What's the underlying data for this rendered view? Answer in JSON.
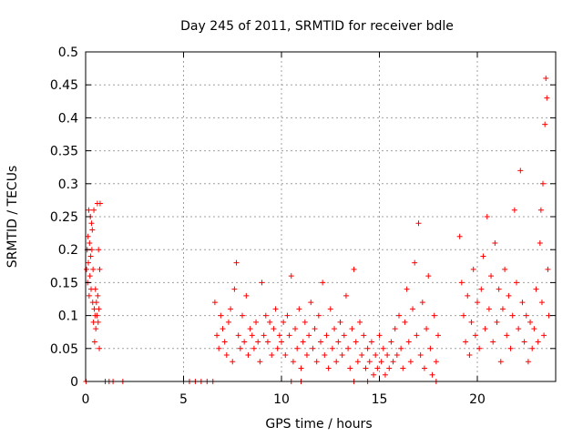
{
  "chart_data": {
    "type": "scatter",
    "title": "Day 245 of 2011, SRMTID for receiver bdle",
    "xlabel": "GPS time / hours",
    "ylabel": "SRMTID / TECUs",
    "xlim": [
      0,
      24
    ],
    "ylim": [
      0,
      0.5
    ],
    "grid": true,
    "marker": "+",
    "series_color": "#ff0000",
    "x_ticks": [
      {
        "value": 0,
        "label": "0"
      },
      {
        "value": 5,
        "label": "5"
      },
      {
        "value": 10,
        "label": "10"
      },
      {
        "value": 15,
        "label": "15"
      },
      {
        "value": 20,
        "label": "20"
      }
    ],
    "y_ticks": [
      {
        "value": 0,
        "label": "0"
      },
      {
        "value": 0.05,
        "label": "0.05"
      },
      {
        "value": 0.1,
        "label": "0.1"
      },
      {
        "value": 0.15,
        "label": "0.15"
      },
      {
        "value": 0.2,
        "label": "0.2"
      },
      {
        "value": 0.25,
        "label": "0.25"
      },
      {
        "value": 0.3,
        "label": "0.3"
      },
      {
        "value": 0.35,
        "label": "0.35"
      },
      {
        "value": 0.4,
        "label": "0.4"
      },
      {
        "value": 0.45,
        "label": "0.45"
      },
      {
        "value": 0.5,
        "label": "0.5"
      }
    ],
    "points": [
      [
        0.02,
        0.0
      ],
      [
        0.05,
        0.17
      ],
      [
        0.08,
        0.2
      ],
      [
        0.1,
        0.15
      ],
      [
        0.12,
        0.22
      ],
      [
        0.14,
        0.18
      ],
      [
        0.16,
        0.26
      ],
      [
        0.18,
        0.13
      ],
      [
        0.2,
        0.21
      ],
      [
        0.22,
        0.16
      ],
      [
        0.24,
        0.25
      ],
      [
        0.26,
        0.19
      ],
      [
        0.28,
        0.14
      ],
      [
        0.3,
        0.24
      ],
      [
        0.32,
        0.2
      ],
      [
        0.34,
        0.23
      ],
      [
        0.36,
        0.12
      ],
      [
        0.38,
        0.17
      ],
      [
        0.4,
        0.09
      ],
      [
        0.42,
        0.26
      ],
      [
        0.44,
        0.11
      ],
      [
        0.46,
        0.06
      ],
      [
        0.48,
        0.1
      ],
      [
        0.5,
        0.14
      ],
      [
        0.52,
        0.08
      ],
      [
        0.55,
        0.12
      ],
      [
        0.58,
        0.1
      ],
      [
        0.6,
        0.27
      ],
      [
        0.62,
        0.13
      ],
      [
        0.64,
        0.09
      ],
      [
        0.66,
        0.2
      ],
      [
        0.68,
        0.11
      ],
      [
        0.7,
        0.05
      ],
      [
        0.72,
        0.17
      ],
      [
        0.74,
        0.27
      ],
      [
        1.0,
        0.0
      ],
      [
        1.2,
        0.0
      ],
      [
        1.4,
        0.0
      ],
      [
        1.9,
        0.0
      ],
      [
        5.0,
        0.0
      ],
      [
        5.3,
        0.0
      ],
      [
        5.6,
        0.0
      ],
      [
        5.9,
        0.0
      ],
      [
        6.2,
        0.0
      ],
      [
        6.5,
        0.0
      ],
      [
        6.6,
        0.12
      ],
      [
        6.7,
        0.07
      ],
      [
        6.8,
        0.05
      ],
      [
        6.9,
        0.1
      ],
      [
        7.0,
        0.08
      ],
      [
        7.1,
        0.06
      ],
      [
        7.2,
        0.04
      ],
      [
        7.3,
        0.09
      ],
      [
        7.4,
        0.11
      ],
      [
        7.5,
        0.03
      ],
      [
        7.6,
        0.14
      ],
      [
        7.7,
        0.18
      ],
      [
        7.8,
        0.07
      ],
      [
        7.9,
        0.05
      ],
      [
        8.0,
        0.1
      ],
      [
        8.1,
        0.06
      ],
      [
        8.2,
        0.13
      ],
      [
        8.3,
        0.04
      ],
      [
        8.4,
        0.08
      ],
      [
        8.5,
        0.07
      ],
      [
        8.6,
        0.05
      ],
      [
        8.7,
        0.09
      ],
      [
        8.8,
        0.06
      ],
      [
        8.9,
        0.03
      ],
      [
        9.0,
        0.15
      ],
      [
        9.1,
        0.07
      ],
      [
        9.2,
        0.1
      ],
      [
        9.3,
        0.06
      ],
      [
        9.4,
        0.09
      ],
      [
        9.5,
        0.04
      ],
      [
        9.6,
        0.08
      ],
      [
        9.7,
        0.11
      ],
      [
        9.8,
        0.05
      ],
      [
        9.9,
        0.07
      ],
      [
        10.0,
        0.06
      ],
      [
        10.1,
        0.09
      ],
      [
        10.2,
        0.04
      ],
      [
        10.3,
        0.1
      ],
      [
        10.4,
        0.07
      ],
      [
        10.5,
        0.16
      ],
      [
        10.6,
        0.03
      ],
      [
        10.7,
        0.08
      ],
      [
        10.8,
        0.05
      ],
      [
        10.9,
        0.11
      ],
      [
        11.0,
        0.02
      ],
      [
        11.1,
        0.06
      ],
      [
        11.2,
        0.09
      ],
      [
        11.3,
        0.04
      ],
      [
        11.4,
        0.07
      ],
      [
        11.5,
        0.12
      ],
      [
        11.6,
        0.05
      ],
      [
        11.7,
        0.08
      ],
      [
        11.8,
        0.03
      ],
      [
        11.9,
        0.1
      ],
      [
        12.0,
        0.06
      ],
      [
        12.1,
        0.15
      ],
      [
        12.2,
        0.04
      ],
      [
        12.3,
        0.07
      ],
      [
        12.4,
        0.02
      ],
      [
        12.5,
        0.11
      ],
      [
        12.6,
        0.05
      ],
      [
        12.7,
        0.08
      ],
      [
        12.8,
        0.03
      ],
      [
        12.9,
        0.06
      ],
      [
        13.0,
        0.09
      ],
      [
        13.1,
        0.04
      ],
      [
        13.2,
        0.07
      ],
      [
        13.3,
        0.13
      ],
      [
        13.4,
        0.05
      ],
      [
        13.5,
        0.02
      ],
      [
        13.6,
        0.08
      ],
      [
        13.7,
        0.17
      ],
      [
        13.8,
        0.06
      ],
      [
        13.9,
        0.03
      ],
      [
        14.0,
        0.09
      ],
      [
        14.1,
        0.04
      ],
      [
        14.2,
        0.07
      ],
      [
        14.3,
        0.02
      ],
      [
        14.4,
        0.05
      ],
      [
        14.5,
        0.03
      ],
      [
        14.6,
        0.06
      ],
      [
        14.7,
        0.01
      ],
      [
        14.8,
        0.04
      ],
      [
        14.9,
        0.02
      ],
      [
        15.0,
        0.07
      ],
      [
        15.1,
        0.03
      ],
      [
        15.2,
        0.05
      ],
      [
        15.3,
        0.01
      ],
      [
        15.4,
        0.04
      ],
      [
        15.5,
        0.02
      ],
      [
        15.6,
        0.06
      ],
      [
        15.7,
        0.03
      ],
      [
        15.8,
        0.08
      ],
      [
        15.9,
        0.04
      ],
      [
        16.0,
        0.1
      ],
      [
        16.1,
        0.05
      ],
      [
        16.2,
        0.02
      ],
      [
        16.3,
        0.09
      ],
      [
        16.4,
        0.14
      ],
      [
        16.5,
        0.06
      ],
      [
        16.6,
        0.03
      ],
      [
        16.7,
        0.11
      ],
      [
        16.8,
        0.18
      ],
      [
        16.9,
        0.07
      ],
      [
        17.0,
        0.24
      ],
      [
        17.1,
        0.04
      ],
      [
        17.2,
        0.12
      ],
      [
        17.3,
        0.02
      ],
      [
        17.4,
        0.08
      ],
      [
        17.5,
        0.16
      ],
      [
        17.6,
        0.05
      ],
      [
        17.7,
        0.01
      ],
      [
        17.8,
        0.1
      ],
      [
        17.9,
        0.03
      ],
      [
        18.0,
        0.07
      ],
      [
        10.5,
        0.0
      ],
      [
        11.0,
        0.0
      ],
      [
        13.7,
        0.0
      ],
      [
        14.4,
        0.0
      ],
      [
        17.9,
        0.0
      ],
      [
        19.1,
        0.22
      ],
      [
        19.2,
        0.15
      ],
      [
        19.3,
        0.1
      ],
      [
        19.4,
        0.06
      ],
      [
        19.5,
        0.13
      ],
      [
        19.6,
        0.04
      ],
      [
        19.7,
        0.09
      ],
      [
        19.8,
        0.17
      ],
      [
        19.9,
        0.07
      ],
      [
        20.0,
        0.12
      ],
      [
        20.1,
        0.05
      ],
      [
        20.2,
        0.14
      ],
      [
        20.3,
        0.19
      ],
      [
        20.4,
        0.08
      ],
      [
        20.5,
        0.25
      ],
      [
        20.6,
        0.11
      ],
      [
        20.7,
        0.16
      ],
      [
        20.8,
        0.06
      ],
      [
        20.9,
        0.21
      ],
      [
        21.0,
        0.09
      ],
      [
        21.1,
        0.14
      ],
      [
        21.2,
        0.03
      ],
      [
        21.3,
        0.11
      ],
      [
        21.4,
        0.17
      ],
      [
        21.5,
        0.07
      ],
      [
        21.6,
        0.13
      ],
      [
        21.7,
        0.05
      ],
      [
        21.8,
        0.1
      ],
      [
        21.9,
        0.26
      ],
      [
        22.0,
        0.15
      ],
      [
        22.1,
        0.08
      ],
      [
        22.2,
        0.32
      ],
      [
        22.3,
        0.12
      ],
      [
        22.4,
        0.06
      ],
      [
        22.5,
        0.1
      ],
      [
        22.6,
        0.03
      ],
      [
        22.7,
        0.09
      ],
      [
        22.8,
        0.05
      ],
      [
        22.9,
        0.08
      ],
      [
        23.0,
        0.14
      ],
      [
        23.1,
        0.06
      ],
      [
        23.2,
        0.21
      ],
      [
        23.25,
        0.26
      ],
      [
        23.3,
        0.12
      ],
      [
        23.35,
        0.3
      ],
      [
        23.4,
        0.07
      ],
      [
        23.45,
        0.39
      ],
      [
        23.5,
        0.46
      ],
      [
        23.55,
        0.43
      ],
      [
        23.6,
        0.17
      ],
      [
        23.65,
        0.1
      ]
    ]
  }
}
